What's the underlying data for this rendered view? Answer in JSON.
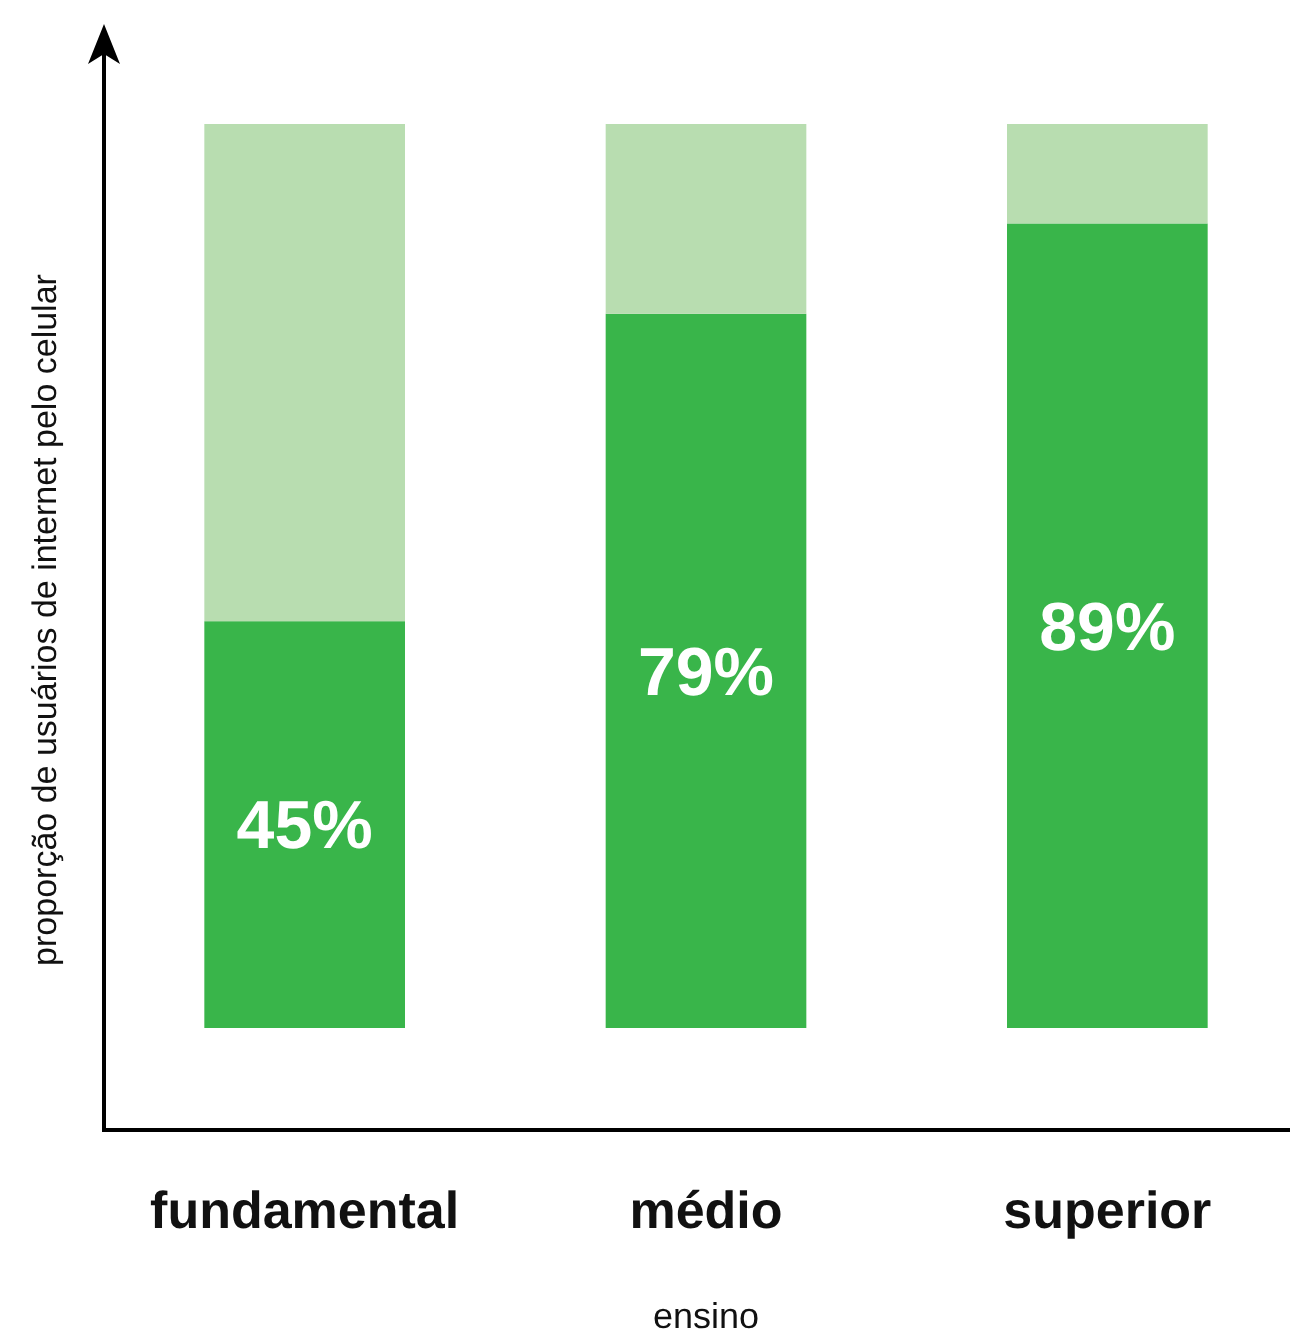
{
  "chart_data": {
    "type": "bar",
    "stacked": true,
    "xlabel": "ensino",
    "ylabel": "proporção de usuários de internet pelo celular",
    "categories": [
      "fundamental",
      "médio",
      "superior"
    ],
    "ylim": [
      0,
      100
    ],
    "tick_labels": "x",
    "series": [
      {
        "color": "#39b54a",
        "values": [
          45,
          79,
          89
        ],
        "value_labels": [
          "45%",
          "79%",
          "89%"
        ]
      },
      {
        "color": "#b8ddb0",
        "values": [
          55,
          21,
          11
        ]
      }
    ]
  }
}
